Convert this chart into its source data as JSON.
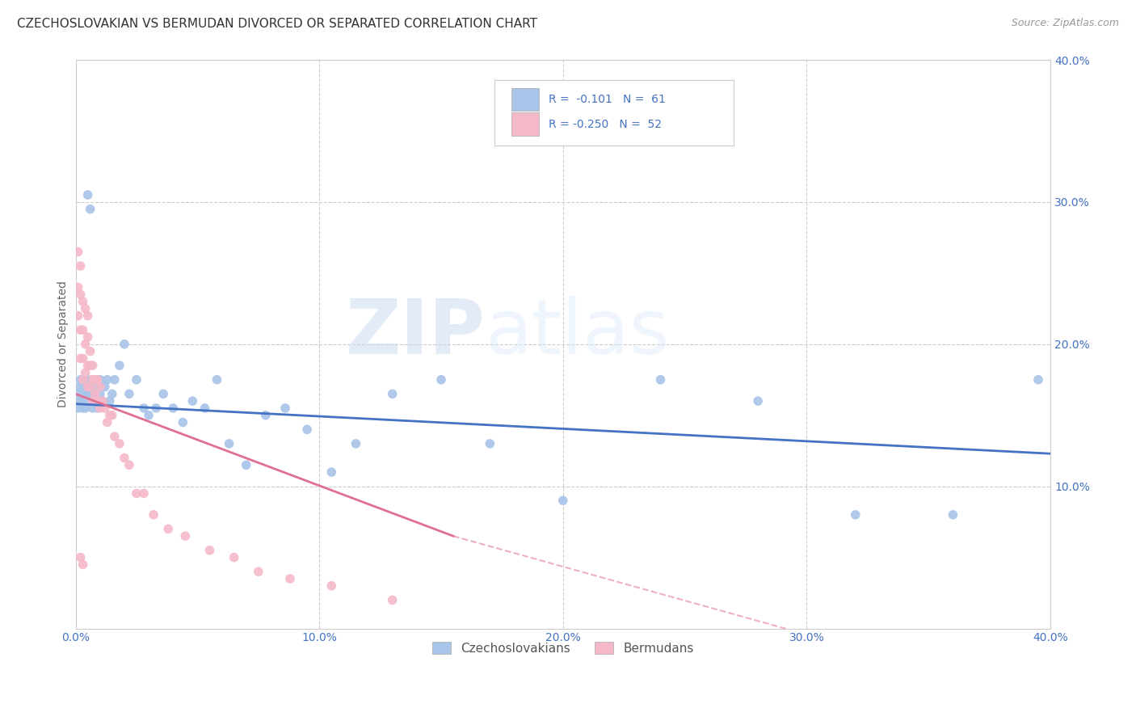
{
  "title": "CZECHOSLOVAKIAN VS BERMUDAN DIVORCED OR SEPARATED CORRELATION CHART",
  "source": "Source: ZipAtlas.com",
  "ylabel": "Divorced or Separated",
  "xlim": [
    0.0,
    0.4
  ],
  "ylim": [
    0.0,
    0.4
  ],
  "blue_color": "#a8c4e8",
  "pink_color": "#f5b8c8",
  "line_blue": "#4472c4",
  "line_pink": "#e07090",
  "watermark_zip": "ZIP",
  "watermark_atlas": "atlas",
  "blue_scatter_x": [
    0.001,
    0.001,
    0.002,
    0.002,
    0.002,
    0.003,
    0.003,
    0.003,
    0.004,
    0.004,
    0.004,
    0.005,
    0.005,
    0.006,
    0.006,
    0.007,
    0.007,
    0.007,
    0.008,
    0.008,
    0.009,
    0.009,
    0.01,
    0.01,
    0.011,
    0.012,
    0.013,
    0.014,
    0.015,
    0.016,
    0.018,
    0.02,
    0.022,
    0.025,
    0.028,
    0.03,
    0.033,
    0.036,
    0.04,
    0.044,
    0.048,
    0.053,
    0.058,
    0.063,
    0.07,
    0.078,
    0.086,
    0.095,
    0.105,
    0.115,
    0.13,
    0.15,
    0.17,
    0.2,
    0.24,
    0.28,
    0.32,
    0.36,
    0.395,
    0.005,
    0.006
  ],
  "blue_scatter_y": [
    0.165,
    0.155,
    0.175,
    0.16,
    0.17,
    0.175,
    0.16,
    0.155,
    0.165,
    0.17,
    0.155,
    0.175,
    0.165,
    0.17,
    0.16,
    0.175,
    0.165,
    0.155,
    0.17,
    0.16,
    0.175,
    0.155,
    0.165,
    0.175,
    0.16,
    0.17,
    0.175,
    0.16,
    0.165,
    0.175,
    0.185,
    0.2,
    0.165,
    0.175,
    0.155,
    0.15,
    0.155,
    0.165,
    0.155,
    0.145,
    0.16,
    0.155,
    0.175,
    0.13,
    0.115,
    0.15,
    0.155,
    0.14,
    0.11,
    0.13,
    0.165,
    0.175,
    0.13,
    0.09,
    0.175,
    0.16,
    0.08,
    0.08,
    0.175,
    0.305,
    0.295
  ],
  "pink_scatter_x": [
    0.001,
    0.001,
    0.001,
    0.002,
    0.002,
    0.002,
    0.002,
    0.003,
    0.003,
    0.003,
    0.003,
    0.004,
    0.004,
    0.004,
    0.005,
    0.005,
    0.005,
    0.005,
    0.006,
    0.006,
    0.006,
    0.007,
    0.007,
    0.007,
    0.008,
    0.008,
    0.009,
    0.009,
    0.01,
    0.01,
    0.011,
    0.012,
    0.013,
    0.014,
    0.015,
    0.016,
    0.018,
    0.02,
    0.022,
    0.025,
    0.028,
    0.032,
    0.038,
    0.045,
    0.055,
    0.065,
    0.075,
    0.088,
    0.105,
    0.13,
    0.002,
    0.003
  ],
  "pink_scatter_y": [
    0.265,
    0.24,
    0.22,
    0.255,
    0.235,
    0.21,
    0.19,
    0.23,
    0.21,
    0.19,
    0.175,
    0.225,
    0.2,
    0.18,
    0.22,
    0.205,
    0.185,
    0.17,
    0.195,
    0.185,
    0.17,
    0.185,
    0.175,
    0.16,
    0.175,
    0.165,
    0.175,
    0.16,
    0.17,
    0.155,
    0.16,
    0.155,
    0.145,
    0.15,
    0.15,
    0.135,
    0.13,
    0.12,
    0.115,
    0.095,
    0.095,
    0.08,
    0.07,
    0.065,
    0.055,
    0.05,
    0.04,
    0.035,
    0.03,
    0.02,
    0.05,
    0.045
  ],
  "blue_trend": [
    0.0,
    0.4,
    0.158,
    0.123
  ],
  "pink_trend_solid": [
    0.0,
    0.155,
    0.165,
    0.065
  ],
  "pink_trend_dash": [
    0.155,
    0.4,
    0.065,
    -0.052
  ],
  "background_color": "#ffffff",
  "grid_color": "#cccccc",
  "title_fontsize": 11,
  "tick_fontsize": 10,
  "axis_label_fontsize": 10
}
